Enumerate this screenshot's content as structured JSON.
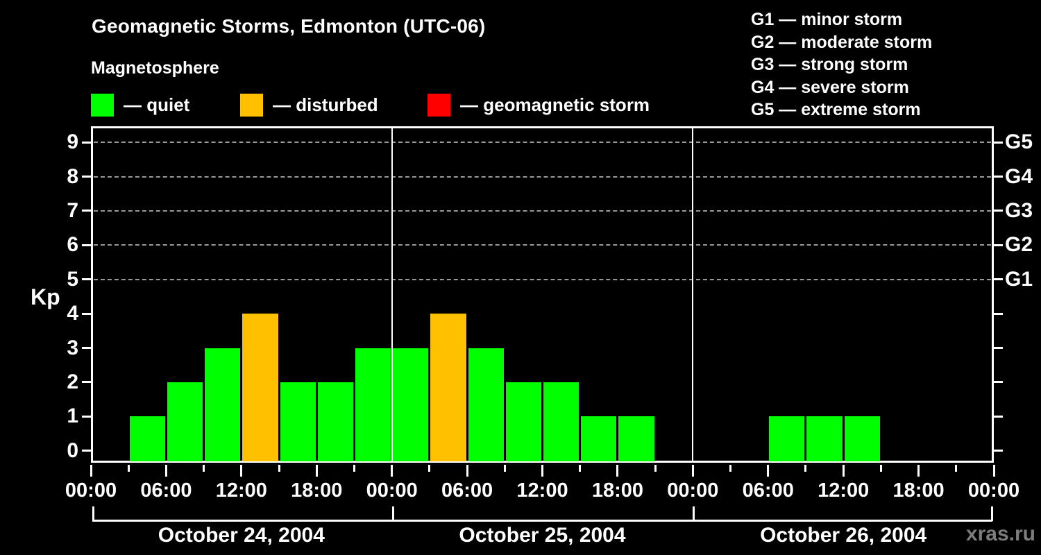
{
  "header": {
    "title": "Geomagnetic Storms, Edmonton (UTC-06)",
    "subtitle": "Magnetosphere"
  },
  "legend": {
    "items": [
      {
        "name": "quiet",
        "label": "— quiet",
        "color": "#00ff00"
      },
      {
        "name": "disturbed",
        "label": "— disturbed",
        "color": "#ffc000"
      },
      {
        "name": "geomagnetic-storm",
        "label": "— geomagnetic storm",
        "color": "#ff0000"
      }
    ]
  },
  "storm_scale_legend": {
    "items": [
      "G1 — minor storm",
      "G2 — moderate storm",
      "G3 — strong storm",
      "G4 — severe storm",
      "G5 — extreme storm"
    ]
  },
  "watermark": "xras.ru",
  "chart_data": {
    "type": "bar",
    "title": "Geomagnetic Storms, Edmonton (UTC-06)",
    "ylabel": "Kp",
    "ylim": [
      0,
      9
    ],
    "yticks": [
      0,
      1,
      2,
      3,
      4,
      5,
      6,
      7,
      8,
      9
    ],
    "gridlines_at": [
      5,
      6,
      7,
      8,
      9
    ],
    "grid_style": "dashed-gray",
    "right_axis_labels": [
      {
        "kp": 5,
        "label": "G1"
      },
      {
        "kp": 6,
        "label": "G2"
      },
      {
        "kp": 7,
        "label": "G3"
      },
      {
        "kp": 8,
        "label": "G4"
      },
      {
        "kp": 9,
        "label": "G5"
      }
    ],
    "x_major_tick_labels_per_day": [
      "00:00",
      "06:00",
      "12:00",
      "18:00"
    ],
    "x_end_label": "00:00",
    "slot_hours": [
      "00:00",
      "03:00",
      "06:00",
      "09:00",
      "12:00",
      "15:00",
      "18:00",
      "21:00"
    ],
    "palette": {
      "quiet": "#00ff00",
      "disturbed": "#ffc000",
      "storm": "#ff0000"
    },
    "days": [
      {
        "date": "October 24, 2004",
        "values": [
          0,
          1,
          2,
          3,
          4,
          2,
          2,
          3
        ],
        "status": [
          "none",
          "quiet",
          "quiet",
          "quiet",
          "disturbed",
          "quiet",
          "quiet",
          "quiet"
        ]
      },
      {
        "date": "October 25, 2004",
        "values": [
          3,
          4,
          3,
          2,
          2,
          1,
          1,
          0
        ],
        "status": [
          "quiet",
          "disturbed",
          "quiet",
          "quiet",
          "quiet",
          "quiet",
          "quiet",
          "none"
        ]
      },
      {
        "date": "October 26, 2004",
        "values": [
          0,
          0,
          1,
          1,
          1,
          0,
          0,
          0
        ],
        "status": [
          "none",
          "none",
          "quiet",
          "quiet",
          "quiet",
          "none",
          "none",
          "none"
        ]
      }
    ]
  }
}
